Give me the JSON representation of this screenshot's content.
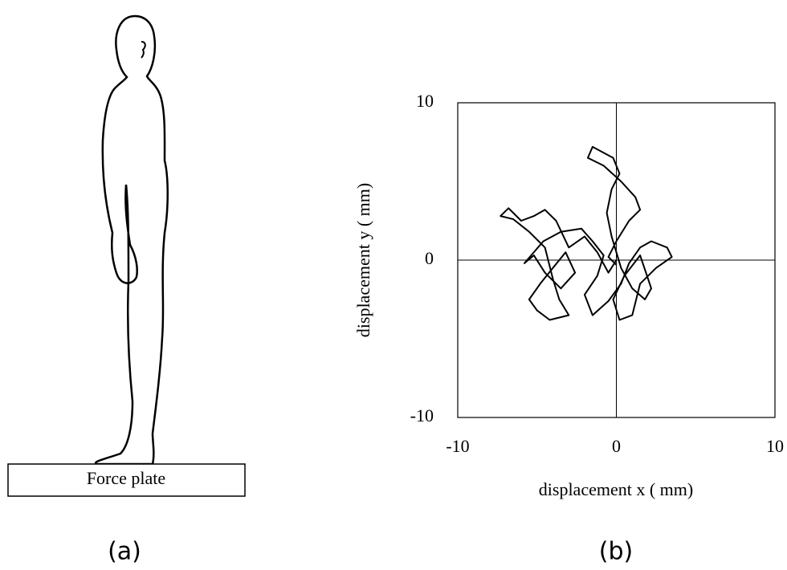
{
  "figure": {
    "force_plate_label": "Force plate",
    "panel_a_caption": "(a)",
    "panel_b_caption": "(b)"
  },
  "chart_data": {
    "type": "line",
    "xlabel": "displacement x ( mm)",
    "ylabel": "displacement y ( mm)",
    "color": "#000000",
    "xlim": [
      -10,
      10
    ],
    "ylim": [
      -10,
      10
    ],
    "xticks": [
      -10,
      0,
      10
    ],
    "yticks": [
      -10,
      0,
      10
    ],
    "zero_lines": true,
    "x": [
      0,
      -0.5,
      -1.2,
      -2,
      -3,
      -3.8,
      -4.5,
      -5.2,
      -6,
      -6.8,
      -7.3,
      -6.5,
      -5.5,
      -4.5,
      -4,
      -3.6,
      -3,
      -4.2,
      -5,
      -5.5,
      -4.8,
      -4,
      -3.2,
      -2.6,
      -3.5,
      -4.5,
      -5.2,
      -5.8,
      -4.6,
      -3.5,
      -2.2,
      -1.5,
      -0.8,
      -1.2,
      -2,
      -1.5,
      -0.5,
      0.3,
      0.8,
      1.5,
      2.2,
      3.2,
      3.5,
      2.5,
      1.5,
      1,
      0.2,
      -0.2,
      0.5,
      1.5,
      2.2,
      1.8,
      1,
      0.3,
      -0.3,
      -0.6,
      -0.3,
      0.2,
      -0.2,
      -1.5,
      -1.8,
      -0.8,
      0.3,
      1.2,
      1.5,
      0.8,
      0,
      -0.5,
      0
    ],
    "values": [
      0,
      -0.8,
      0.5,
      1.5,
      0.8,
      2.5,
      3.2,
      2.8,
      2.5,
      3.3,
      2.8,
      2.6,
      1.8,
      0.8,
      -1.2,
      -2.5,
      -3.5,
      -3.8,
      -3.2,
      -2.5,
      -1.5,
      -0.5,
      0.5,
      -0.8,
      -1.8,
      -0.8,
      0.3,
      -0.2,
      1.2,
      1.8,
      2,
      1.2,
      0.3,
      -1,
      -2.2,
      -3.5,
      -2.6,
      -1.5,
      -0.2,
      0.8,
      1.2,
      0.8,
      0.2,
      -0.5,
      -1.5,
      -3.5,
      -3.8,
      -2.5,
      -1,
      0.3,
      -1.8,
      -2.5,
      -1.8,
      -0.5,
      1.5,
      3,
      4.5,
      5.5,
      6.5,
      7.2,
      6.5,
      6,
      5,
      4,
      3.2,
      2.5,
      1.2,
      0.2,
      -0.3
    ]
  }
}
